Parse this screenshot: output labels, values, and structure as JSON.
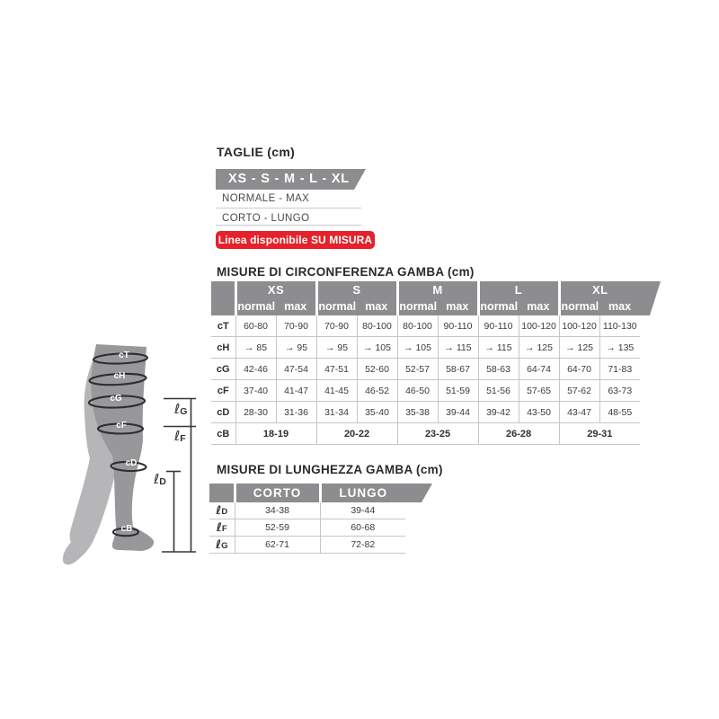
{
  "taglie": {
    "title": "TAGLIE (cm)",
    "sizes_banner": "XS - S - M - L - XL",
    "options": [
      "NORMALE - MAX",
      "CORTO - LUNGO"
    ],
    "badge": "Linea disponibile SU MISURA"
  },
  "circumference": {
    "title": "MISURE DI CIRCONFERENZA GAMBA (cm)",
    "sizes": [
      "XS",
      "S",
      "M",
      "L",
      "XL"
    ],
    "subcolumns": [
      "normal",
      "max"
    ],
    "rows": [
      {
        "label": "cT",
        "values": [
          "60-80",
          "70-90",
          "70-90",
          "80-100",
          "80-100",
          "90-110",
          "90-110",
          "100-120",
          "100-120",
          "110-130"
        ]
      },
      {
        "label": "cH",
        "values": [
          "→ 85",
          "→ 95",
          "→ 95",
          "→ 105",
          "→ 105",
          "→ 115",
          "→ 115",
          "→ 125",
          "→ 125",
          "→ 135"
        ]
      },
      {
        "label": "cG",
        "values": [
          "42-46",
          "47-54",
          "47-51",
          "52-60",
          "52-57",
          "58-67",
          "58-63",
          "64-74",
          "64-70",
          "71-83"
        ]
      },
      {
        "label": "cF",
        "values": [
          "37-40",
          "41-47",
          "41-45",
          "46-52",
          "46-50",
          "51-59",
          "51-56",
          "57-65",
          "57-62",
          "63-73"
        ]
      },
      {
        "label": "cD",
        "values": [
          "28-30",
          "31-36",
          "31-34",
          "35-40",
          "35-38",
          "39-44",
          "39-42",
          "43-50",
          "43-47",
          "48-55"
        ]
      }
    ],
    "span_row": {
      "label": "cB",
      "values": [
        "18-19",
        "20-22",
        "23-25",
        "26-28",
        "29-31"
      ]
    }
  },
  "length": {
    "title": "MISURE DI LUNGHEZZA GAMBA (cm)",
    "columns": [
      "CORTO",
      "LUNGO"
    ],
    "rows": [
      {
        "script": "ℓ",
        "letter": "D",
        "values": [
          "34-38",
          "39-44"
        ]
      },
      {
        "script": "ℓ",
        "letter": "F",
        "values": [
          "52-59",
          "60-68"
        ]
      },
      {
        "script": "ℓ",
        "letter": "G",
        "values": [
          "62-71",
          "72-82"
        ]
      }
    ]
  },
  "leg": {
    "band_labels": [
      "cT",
      "cH",
      "cG",
      "cF",
      "cD",
      "cB"
    ],
    "length_markers": [
      {
        "script": "ℓ",
        "letter": "G"
      },
      {
        "script": "ℓ",
        "letter": "F"
      },
      {
        "script": "ℓ",
        "letter": "D"
      }
    ]
  },
  "colors": {
    "header_gray": "#8d8d90",
    "badge_red": "#e5212b",
    "leg_front": "#98989b",
    "leg_back": "#b6b6b8",
    "table_line": "#c6c6c8",
    "ink": "#2f2f31"
  }
}
